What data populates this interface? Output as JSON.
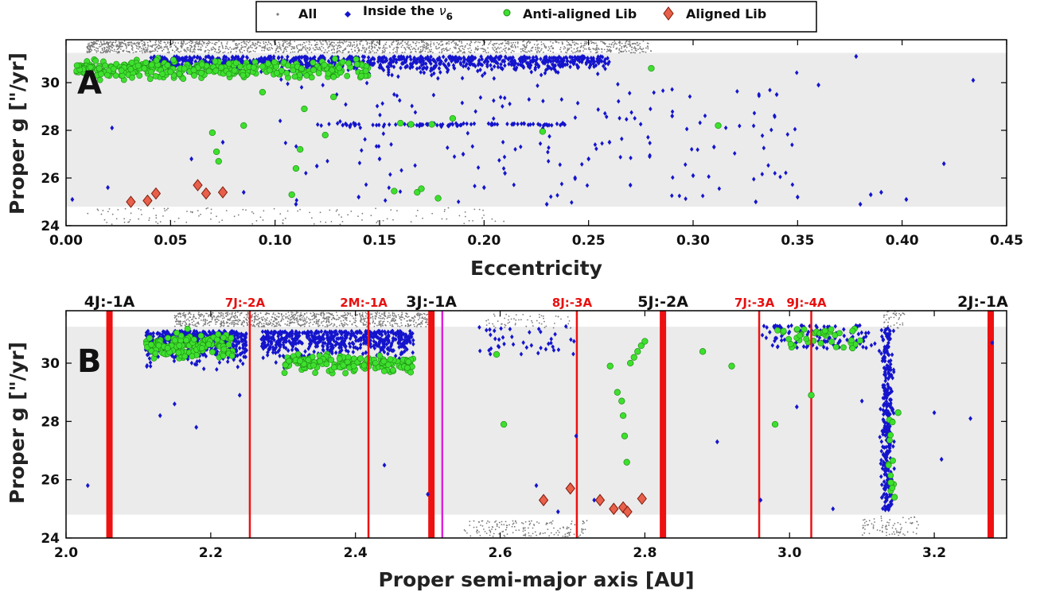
{
  "colors": {
    "all": "#7a7a7a",
    "nu6": "#1414cc",
    "anti": "#3ee02e",
    "anti_edge": "#1f8a14",
    "aligned": "#e8604a",
    "aligned_edge": "#7a1a0a",
    "band": "#ebebeb",
    "resonance": "#ee1111",
    "magenta": "#e020e0"
  },
  "legend": {
    "items": [
      {
        "key": "all",
        "label": "All",
        "marker": "dot"
      },
      {
        "key": "nu6",
        "label": "Inside the",
        "symbol": "ν",
        "sub": "6",
        "marker": "diamond"
      },
      {
        "key": "anti",
        "label": "Anti-aligned Lib",
        "marker": "hex"
      },
      {
        "key": "aligned",
        "label": "Aligned Lib",
        "marker": "diamond-big"
      }
    ]
  },
  "panels": [
    {
      "id": "A",
      "letter": "A",
      "xlabel": "Eccentricity",
      "ylabel": "Proper g [\"/yr]",
      "xlim": [
        0.0,
        0.45
      ],
      "ylim": [
        24,
        31.8
      ],
      "xticks": [
        "0.00",
        "0.05",
        "0.10",
        "0.15",
        "0.20",
        "0.25",
        "0.30",
        "0.35",
        "0.40",
        "0.45"
      ],
      "yticks": [
        "24",
        "26",
        "28",
        "30"
      ],
      "band": [
        24.8,
        31.25
      ]
    },
    {
      "id": "B",
      "letter": "B",
      "xlabel": "Proper semi-major axis [AU]",
      "ylabel": "Proper g [\"/yr]",
      "xlim": [
        2.0,
        3.3
      ],
      "ylim": [
        24,
        31.8
      ],
      "xticks": [
        "2.0",
        "2.2",
        "2.4",
        "2.6",
        "2.8",
        "3.0",
        "3.2"
      ],
      "yticks": [
        "24",
        "26",
        "28",
        "30"
      ],
      "band": [
        24.8,
        31.25
      ],
      "resonances": [
        {
          "label": "4J:-1A",
          "a": 2.06,
          "kind": "major"
        },
        {
          "label": "7J:-2A",
          "a": 2.254,
          "kind": "minor"
        },
        {
          "label": "2M:-1A",
          "a": 2.418,
          "kind": "minor"
        },
        {
          "label": "3J:-1A",
          "a": 2.505,
          "kind": "major"
        },
        {
          "label": "8J:-3A",
          "a": 2.706,
          "kind": "minor"
        },
        {
          "label": "5J:-2A",
          "a": 2.825,
          "kind": "major"
        },
        {
          "label": "7J:-3A",
          "a": 2.958,
          "kind": "minor"
        },
        {
          "label": "9J:-4A",
          "a": 3.03,
          "kind": "minor"
        },
        {
          "label": "2J:-1A",
          "a": 3.278,
          "kind": "major"
        }
      ],
      "magenta_line": 2.52
    }
  ],
  "chart_data": [
    {
      "type": "scatter",
      "panel": "A",
      "xlabel": "Eccentricity",
      "ylabel": "Proper g [\"/yr]",
      "xlim": [
        0.0,
        0.45
      ],
      "ylim": [
        24,
        31.8
      ],
      "series": [
        {
          "name": "Aligned Lib",
          "key": "aligned",
          "x": [
            0.031,
            0.039,
            0.043,
            0.063,
            0.067,
            0.075
          ],
          "y": [
            25.0,
            25.05,
            25.35,
            25.7,
            25.35,
            25.4
          ]
        },
        {
          "name": "Anti-aligned Lib",
          "key": "anti",
          "x": [
            0.07,
            0.072,
            0.073,
            0.085,
            0.094,
            0.108,
            0.11,
            0.112,
            0.114,
            0.124,
            0.128,
            0.157,
            0.16,
            0.165,
            0.168,
            0.17,
            0.175,
            0.178,
            0.185,
            0.228,
            0.28,
            0.312
          ],
          "y": [
            27.9,
            27.1,
            26.7,
            28.2,
            29.6,
            25.3,
            26.4,
            27.2,
            28.9,
            27.8,
            29.4,
            25.45,
            28.3,
            28.25,
            25.4,
            25.55,
            28.25,
            25.15,
            28.5,
            27.95,
            30.6,
            28.2
          ]
        },
        {
          "name": "Inside the ν6",
          "key": "nu6",
          "x": [
            0.003,
            0.02,
            0.022,
            0.06,
            0.075,
            0.085,
            0.11,
            0.12,
            0.14,
            0.15,
            0.19,
            0.2,
            0.21,
            0.23,
            0.25,
            0.26,
            0.27,
            0.29,
            0.3,
            0.31,
            0.33,
            0.34,
            0.35,
            0.36,
            0.378,
            0.38,
            0.385,
            0.39,
            0.402,
            0.42,
            0.434
          ],
          "y": [
            25.1,
            25.6,
            28.1,
            26.8,
            27.5,
            25.4,
            24.9,
            26.5,
            25.2,
            26.8,
            27.0,
            25.6,
            26.2,
            24.9,
            26.8,
            27.5,
            25.7,
            28.6,
            26.1,
            27.3,
            25.0,
            29.5,
            25.2,
            29.9,
            31.1,
            24.9,
            25.3,
            25.4,
            25.1,
            26.6,
            30.1
          ]
        }
      ]
    },
    {
      "type": "scatter",
      "panel": "B",
      "xlabel": "Proper semi-major axis [AU]",
      "ylabel": "Proper g [\"/yr]",
      "xlim": [
        2.0,
        3.3
      ],
      "ylim": [
        24,
        31.8
      ],
      "series": [
        {
          "name": "Aligned Lib",
          "key": "aligned",
          "x": [
            2.66,
            2.697,
            2.738,
            2.757,
            2.77,
            2.776,
            2.796
          ],
          "y": [
            25.3,
            25.7,
            25.3,
            25.0,
            25.05,
            24.9,
            25.35
          ]
        },
        {
          "name": "Anti-aligned Lib",
          "key": "anti",
          "x": [
            2.595,
            2.605,
            2.752,
            2.762,
            2.768,
            2.77,
            2.772,
            2.775,
            2.78,
            2.785,
            2.79,
            2.795,
            2.8,
            2.88,
            2.92,
            2.98,
            3.03,
            3.14,
            3.145,
            3.15
          ],
          "y": [
            30.3,
            27.9,
            29.9,
            29.0,
            28.7,
            28.2,
            27.5,
            26.6,
            30.0,
            30.2,
            30.4,
            30.6,
            30.75,
            30.4,
            29.9,
            27.9,
            28.9,
            25.9,
            25.4,
            28.3
          ]
        },
        {
          "name": "Inside the ν6",
          "key": "nu6",
          "x": [
            2.03,
            2.13,
            2.15,
            2.18,
            2.24,
            2.44,
            2.5,
            2.65,
            2.68,
            2.705,
            2.73,
            2.9,
            2.96,
            3.01,
            3.06,
            3.1,
            3.2,
            3.21,
            3.25,
            3.28
          ],
          "y": [
            25.8,
            28.2,
            28.6,
            27.8,
            28.9,
            26.5,
            25.5,
            25.8,
            24.9,
            27.5,
            25.3,
            27.3,
            25.3,
            28.5,
            25.0,
            28.7,
            28.3,
            26.7,
            28.1,
            30.7
          ]
        }
      ]
    }
  ]
}
